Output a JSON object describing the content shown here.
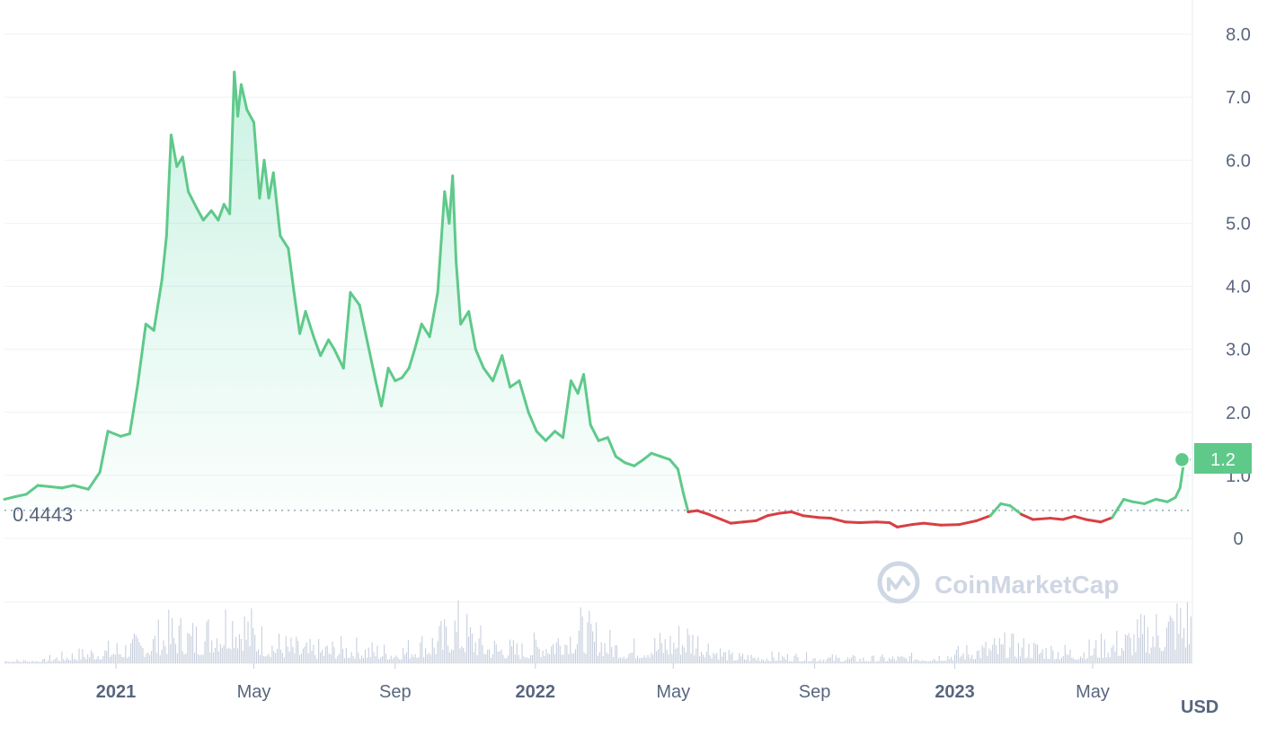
{
  "chart_data": {
    "type": "line",
    "y_ticks": [
      "0",
      "1.0",
      "2.0",
      "3.0",
      "4.0",
      "5.0",
      "6.0",
      "7.0",
      "8.0"
    ],
    "x_ticks": [
      {
        "label": "2021",
        "year": true,
        "date": "2021-01-01"
      },
      {
        "label": "May",
        "year": false,
        "date": "2021-05-01"
      },
      {
        "label": "Sep",
        "year": false,
        "date": "2021-09-01"
      },
      {
        "label": "2022",
        "year": true,
        "date": "2022-01-01"
      },
      {
        "label": "May",
        "year": false,
        "date": "2022-05-01"
      },
      {
        "label": "Sep",
        "year": false,
        "date": "2022-09-01"
      },
      {
        "label": "2023",
        "year": true,
        "date": "2023-01-01"
      },
      {
        "label": "May",
        "year": false,
        "date": "2023-05-01"
      }
    ],
    "ylim": [
      0,
      8
    ],
    "xlim": [
      "2020-09-26",
      "2023-07-26"
    ],
    "baseline_value": 0.4443,
    "baseline_label": "0.4443",
    "current_price_label": "1.2",
    "current_price": 1.25,
    "currency_label": "USD",
    "watermark": "CoinMarketCap",
    "colors": {
      "up": "#16c784",
      "up_line": "#5fc98a",
      "down": "#ea3943",
      "down_line": "#d83f43",
      "grid": "#eff2f5",
      "volume": "#c7cfdd",
      "badge": "#5fc98a"
    },
    "series": [
      {
        "values": [
          [
            "2020-09-26",
            0.62
          ],
          [
            "2020-10-05",
            0.66
          ],
          [
            "2020-10-15",
            0.7
          ],
          [
            "2020-10-25",
            0.84
          ],
          [
            "2020-11-05",
            0.82
          ],
          [
            "2020-11-15",
            0.8
          ],
          [
            "2020-11-25",
            0.84
          ],
          [
            "2020-12-08",
            0.78
          ],
          [
            "2020-12-18",
            1.05
          ],
          [
            "2020-12-25",
            1.7
          ],
          [
            "2021-01-05",
            1.62
          ],
          [
            "2021-01-13",
            1.66
          ],
          [
            "2021-01-20",
            2.45
          ],
          [
            "2021-01-27",
            3.4
          ],
          [
            "2021-02-03",
            3.3
          ],
          [
            "2021-02-10",
            4.1
          ],
          [
            "2021-02-14",
            4.8
          ],
          [
            "2021-02-18",
            6.4
          ],
          [
            "2021-02-23",
            5.9
          ],
          [
            "2021-02-28",
            6.05
          ],
          [
            "2021-03-05",
            5.5
          ],
          [
            "2021-03-12",
            5.25
          ],
          [
            "2021-03-18",
            5.05
          ],
          [
            "2021-03-25",
            5.2
          ],
          [
            "2021-03-31",
            5.05
          ],
          [
            "2021-04-05",
            5.3
          ],
          [
            "2021-04-10",
            5.15
          ],
          [
            "2021-04-14",
            7.4
          ],
          [
            "2021-04-17",
            6.7
          ],
          [
            "2021-04-20",
            7.2
          ],
          [
            "2021-04-25",
            6.8
          ],
          [
            "2021-05-01",
            6.6
          ],
          [
            "2021-05-06",
            5.4
          ],
          [
            "2021-05-10",
            6.0
          ],
          [
            "2021-05-14",
            5.4
          ],
          [
            "2021-05-18",
            5.8
          ],
          [
            "2021-05-24",
            4.8
          ],
          [
            "2021-05-31",
            4.6
          ],
          [
            "2021-06-05",
            3.9
          ],
          [
            "2021-06-10",
            3.25
          ],
          [
            "2021-06-15",
            3.6
          ],
          [
            "2021-06-22",
            3.2
          ],
          [
            "2021-06-28",
            2.9
          ],
          [
            "2021-07-05",
            3.15
          ],
          [
            "2021-07-10",
            3.0
          ],
          [
            "2021-07-18",
            2.7
          ],
          [
            "2021-07-24",
            3.9
          ],
          [
            "2021-08-01",
            3.7
          ],
          [
            "2021-08-08",
            3.1
          ],
          [
            "2021-08-15",
            2.5
          ],
          [
            "2021-08-20",
            2.1
          ],
          [
            "2021-08-26",
            2.7
          ],
          [
            "2021-09-01",
            2.5
          ],
          [
            "2021-09-07",
            2.55
          ],
          [
            "2021-09-13",
            2.7
          ],
          [
            "2021-09-18",
            3.0
          ],
          [
            "2021-09-24",
            3.4
          ],
          [
            "2021-10-01",
            3.2
          ],
          [
            "2021-10-08",
            3.9
          ],
          [
            "2021-10-14",
            5.5
          ],
          [
            "2021-10-18",
            5.0
          ],
          [
            "2021-10-21",
            5.75
          ],
          [
            "2021-10-24",
            4.4
          ],
          [
            "2021-10-28",
            3.4
          ],
          [
            "2021-11-04",
            3.6
          ],
          [
            "2021-11-10",
            3.0
          ],
          [
            "2021-11-17",
            2.7
          ],
          [
            "2021-11-25",
            2.5
          ],
          [
            "2021-12-03",
            2.9
          ],
          [
            "2021-12-10",
            2.4
          ],
          [
            "2021-12-18",
            2.5
          ],
          [
            "2021-12-26",
            2.0
          ],
          [
            "2022-01-02",
            1.7
          ],
          [
            "2022-01-10",
            1.55
          ],
          [
            "2022-01-18",
            1.7
          ],
          [
            "2022-01-25",
            1.6
          ],
          [
            "2022-02-01",
            2.5
          ],
          [
            "2022-02-07",
            2.3
          ],
          [
            "2022-02-12",
            2.6
          ],
          [
            "2022-02-18",
            1.8
          ],
          [
            "2022-02-25",
            1.55
          ],
          [
            "2022-03-05",
            1.6
          ],
          [
            "2022-03-12",
            1.3
          ],
          [
            "2022-03-20",
            1.2
          ],
          [
            "2022-03-28",
            1.15
          ],
          [
            "2022-04-05",
            1.25
          ],
          [
            "2022-04-12",
            1.35
          ],
          [
            "2022-04-20",
            1.3
          ],
          [
            "2022-04-28",
            1.25
          ],
          [
            "2022-05-05",
            1.1
          ],
          [
            "2022-05-10",
            0.7
          ],
          [
            "2022-05-14",
            0.42
          ],
          [
            "2022-05-22",
            0.44
          ],
          [
            "2022-06-01",
            0.38
          ],
          [
            "2022-06-12",
            0.3
          ],
          [
            "2022-06-20",
            0.24
          ],
          [
            "2022-07-01",
            0.26
          ],
          [
            "2022-07-12",
            0.28
          ],
          [
            "2022-07-22",
            0.36
          ],
          [
            "2022-08-02",
            0.4
          ],
          [
            "2022-08-12",
            0.42
          ],
          [
            "2022-08-22",
            0.36
          ],
          [
            "2022-09-05",
            0.33
          ],
          [
            "2022-09-15",
            0.32
          ],
          [
            "2022-09-28",
            0.26
          ],
          [
            "2022-10-10",
            0.25
          ],
          [
            "2022-10-25",
            0.26
          ],
          [
            "2022-11-05",
            0.25
          ],
          [
            "2022-11-12",
            0.18
          ],
          [
            "2022-11-25",
            0.22
          ],
          [
            "2022-12-05",
            0.24
          ],
          [
            "2022-12-20",
            0.21
          ],
          [
            "2023-01-05",
            0.22
          ],
          [
            "2023-01-20",
            0.28
          ],
          [
            "2023-02-01",
            0.36
          ],
          [
            "2023-02-10",
            0.55
          ],
          [
            "2023-02-18",
            0.52
          ],
          [
            "2023-02-28",
            0.38
          ],
          [
            "2023-03-10",
            0.3
          ],
          [
            "2023-03-25",
            0.32
          ],
          [
            "2023-04-05",
            0.3
          ],
          [
            "2023-04-15",
            0.35
          ],
          [
            "2023-04-25",
            0.3
          ],
          [
            "2023-05-08",
            0.26
          ],
          [
            "2023-05-18",
            0.33
          ],
          [
            "2023-05-28",
            0.62
          ],
          [
            "2023-06-05",
            0.58
          ],
          [
            "2023-06-15",
            0.55
          ],
          [
            "2023-06-25",
            0.62
          ],
          [
            "2023-07-05",
            0.58
          ],
          [
            "2023-07-12",
            0.65
          ],
          [
            "2023-07-16",
            0.8
          ],
          [
            "2023-07-20",
            1.3
          ],
          [
            "2023-07-24",
            1.25
          ]
        ]
      }
    ],
    "volume": [
      [
        "2020-11-01",
        2
      ],
      [
        "2021-01-20",
        8
      ],
      [
        "2021-02-18",
        14
      ],
      [
        "2021-03-15",
        12
      ],
      [
        "2021-04-14",
        22
      ],
      [
        "2021-05-10",
        10
      ],
      [
        "2021-06-15",
        6
      ],
      [
        "2021-07-25",
        7
      ],
      [
        "2021-09-01",
        5
      ],
      [
        "2021-10-14",
        12
      ],
      [
        "2021-10-21",
        18
      ],
      [
        "2021-11-20",
        8
      ],
      [
        "2021-12-20",
        6
      ],
      [
        "2022-02-08",
        15
      ],
      [
        "2022-03-20",
        6
      ],
      [
        "2022-04-28",
        10
      ],
      [
        "2022-05-12",
        13
      ],
      [
        "2022-06-20",
        3
      ],
      [
        "2022-08-15",
        3
      ],
      [
        "2022-10-15",
        2
      ],
      [
        "2022-12-15",
        3
      ],
      [
        "2023-02-12",
        8
      ],
      [
        "2023-04-15",
        5
      ],
      [
        "2023-05-28",
        10
      ],
      [
        "2023-07-18",
        20
      ]
    ]
  }
}
